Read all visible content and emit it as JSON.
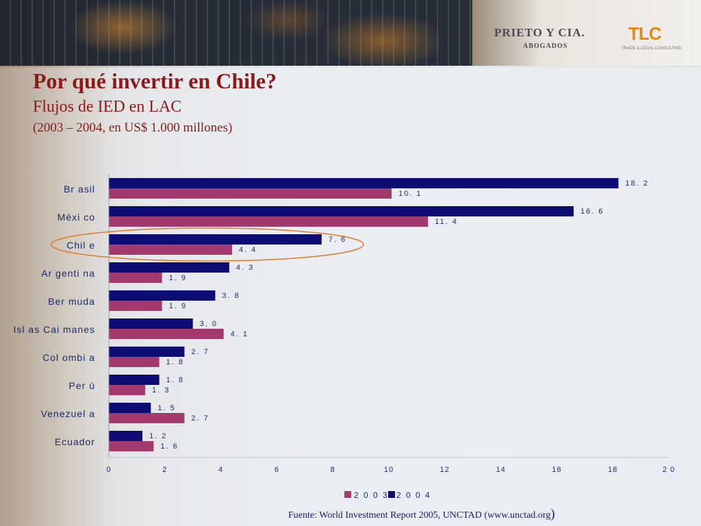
{
  "header": {
    "logo_prieto": "PRIETO Y CIA.",
    "logo_abogados": "ABOGADOS",
    "logo_tlc": "TLC",
    "logo_tlc_sub": "TRADE & LEGAL CONSULTING"
  },
  "slide": {
    "title": "Por qué invertir en Chile?",
    "subtitle": "Flujos de IED en LAC",
    "subtitle2": "(2003 – 2004, en US$ 1.000 millones)",
    "source": "Fuente: World Investment Report 2005, UNCTAD (www.unctad.org",
    "source_paren": ")"
  },
  "colors": {
    "series_2003": "#a23a6e",
    "series_2004": "#0c0c72",
    "highlight": "#e07a2a"
  },
  "chart_data": {
    "type": "bar",
    "orientation": "horizontal",
    "categories": [
      "Brasil",
      "México",
      "Chile",
      "Argentina",
      "Bermuda",
      "Islas Caimanes",
      "Colombia",
      "Perú",
      "Venezuela",
      "Ecuador"
    ],
    "category_labels": [
      "Br asil",
      "Méxi co",
      "Chil e",
      "Ar genti na",
      "Ber muda",
      "Isl as Cai manes",
      "Col ombi a",
      "Per ú",
      "Venezuel a",
      "Ecuador"
    ],
    "series": [
      {
        "name": "2004",
        "legend_label": "2 0 0 4",
        "values": [
          18.2,
          16.6,
          7.6,
          4.3,
          3.8,
          3.0,
          2.7,
          1.8,
          1.5,
          1.2
        ],
        "labels": [
          "18. 2",
          "16. 6",
          "7. 6",
          "4. 3",
          "3. 8",
          "3, 0",
          "2. 7",
          "1. 8",
          "1. 5",
          "1. 2"
        ]
      },
      {
        "name": "2003",
        "legend_label": "2 0 0 3",
        "values": [
          10.1,
          11.4,
          4.4,
          1.9,
          1.9,
          4.1,
          1.8,
          1.3,
          2.7,
          1.6
        ],
        "labels": [
          "10. 1",
          "11. 4",
          "4. 4",
          "1. 9",
          "1. 9",
          "4. 1",
          "1. 8",
          "1. 3",
          "2. 7",
          "1. 6"
        ]
      }
    ],
    "xlim": [
      0,
      20
    ],
    "xticks": [
      0,
      2,
      4,
      6,
      8,
      10,
      12,
      14,
      16,
      18,
      20
    ],
    "xtick_labels": [
      "0",
      "2",
      "4",
      "6",
      "8",
      "10",
      "12",
      "14",
      "16",
      "18",
      "2 0"
    ],
    "highlighted_category": "Chile",
    "legend_position": "bottom",
    "grid": false
  }
}
